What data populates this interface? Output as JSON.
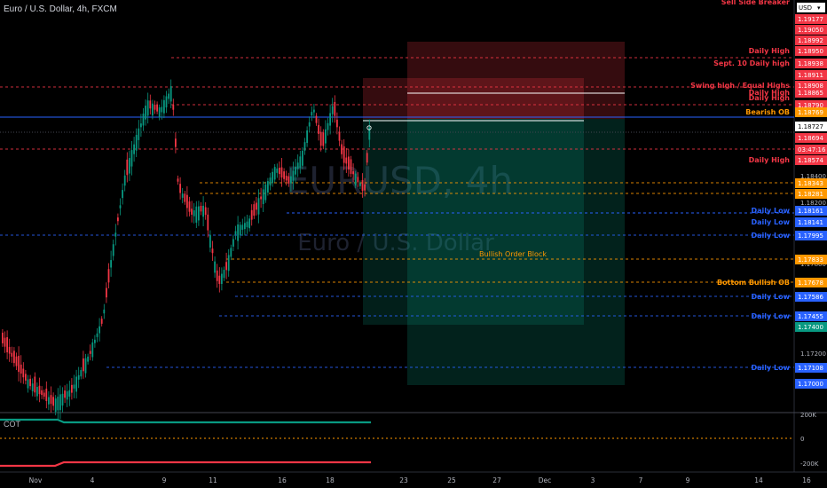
{
  "symbol": {
    "title": "Euro / U.S. Dollar, 4h, FXCM"
  },
  "watermark": {
    "ticker": "EURUSD, 4h",
    "name": "Euro / U.S. Dollar"
  },
  "price_axis": {
    "currency": "USD",
    "ticks": [
      "1.18400",
      "1.18200",
      "1.17800",
      "1.17200"
    ],
    "countdown": "03:47:16",
    "current_price": "1.18727"
  },
  "time_axis": {
    "labels": [
      "Nov",
      "4",
      "9",
      "11",
      "16",
      "18",
      "23",
      "25",
      "27",
      "Dec",
      "3",
      "7",
      "9",
      "14",
      "16"
    ]
  },
  "levels": [
    {
      "label": "Sell Side Breaker",
      "price": "",
      "color": "#f23645"
    },
    {
      "label": "",
      "price": "1.19177",
      "color": "#f23645"
    },
    {
      "label": "",
      "price": "1.19050",
      "color": "#f23645"
    },
    {
      "label": "",
      "price": "1.18992",
      "color": "#f23645"
    },
    {
      "label": "Daily High",
      "price": "1.18950",
      "color": "#f23645"
    },
    {
      "label": "Sept. 10 Daily high",
      "price": "1.18938",
      "color": "#f23645"
    },
    {
      "label": "",
      "price": "1.18911",
      "color": "#f23645"
    },
    {
      "label": "Swing high / Equal Highs",
      "price": "1.18908",
      "color": "#f23645"
    },
    {
      "label": "Daily High",
      "price": "1.18865",
      "color": "#f23645"
    },
    {
      "label": "Daily High",
      "price": "",
      "color": "#f23645"
    },
    {
      "label": "",
      "price": "1.18790",
      "color": "#f23645"
    },
    {
      "label": "Bearish OB",
      "price": "1.18769",
      "color": "#ff9800"
    },
    {
      "label": "",
      "price": "1.18694",
      "color": "#f23645"
    },
    {
      "label": "Daily High",
      "price": "1.18574",
      "color": "#f23645"
    },
    {
      "label": "",
      "price": "1.18343",
      "color": "#ff9800"
    },
    {
      "label": "",
      "price": "1.18281",
      "color": "#ff9800"
    },
    {
      "label": "Daily Low",
      "price": "1.18161",
      "color": "#2962ff"
    },
    {
      "label": "Daily Low",
      "price": "1.18141",
      "color": "#2962ff"
    },
    {
      "label": "Daily Low",
      "price": "1.17995",
      "color": "#2962ff"
    },
    {
      "label": "",
      "price": "1.17833",
      "color": "#ff9800"
    },
    {
      "label": "Bottom Bullish OB",
      "price": "1.17678",
      "color": "#ff9800"
    },
    {
      "label": "Daily Low",
      "price": "1.17586",
      "color": "#2962ff"
    },
    {
      "label": "Daily Low",
      "price": "1.17455",
      "color": "#2962ff"
    },
    {
      "label": "",
      "price": "1.17400",
      "color": "#089981"
    },
    {
      "label": "Daily Low",
      "price": "1.17108",
      "color": "#2962ff"
    },
    {
      "label": "",
      "price": "1.17000",
      "color": "#2962ff"
    }
  ],
  "zones": {
    "bullish_ob_label": "Bullish Order Block"
  },
  "cot_panel": {
    "label": "COT",
    "ticks": [
      "200K",
      "0",
      "-200K"
    ]
  },
  "colors": {
    "up": "#089981",
    "down": "#f23645",
    "orange": "#ff9800",
    "blue": "#2962ff"
  }
}
